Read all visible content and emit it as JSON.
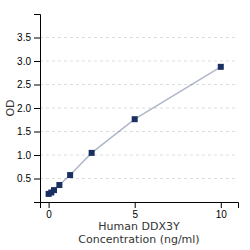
{
  "chart_data": {
    "type": "line",
    "x": [
      0,
      0.156,
      0.313,
      0.625,
      1.25,
      2.5,
      5,
      10
    ],
    "values": [
      0.172,
      0.202,
      0.253,
      0.361,
      0.573,
      1.045,
      1.762,
      2.876
    ],
    "color": "#1a3060",
    "marker": "square",
    "xlabel": [
      "Human DDX3Y",
      "Concentration (ng/ml)"
    ],
    "ylabel": "OD",
    "xlim": [
      -0.5,
      11
    ],
    "ylim": [
      0.0,
      4.0
    ],
    "xticks": [
      0,
      5,
      10
    ],
    "yticks": [
      0.5,
      {
        "value": 1.0,
        "label": "1.0"
      },
      1.5,
      {
        "value": 2.0,
        "label": "2.0"
      },
      2.5,
      {
        "value": 3.0,
        "label": "3.0"
      },
      3.5
    ],
    "grid": true
  }
}
